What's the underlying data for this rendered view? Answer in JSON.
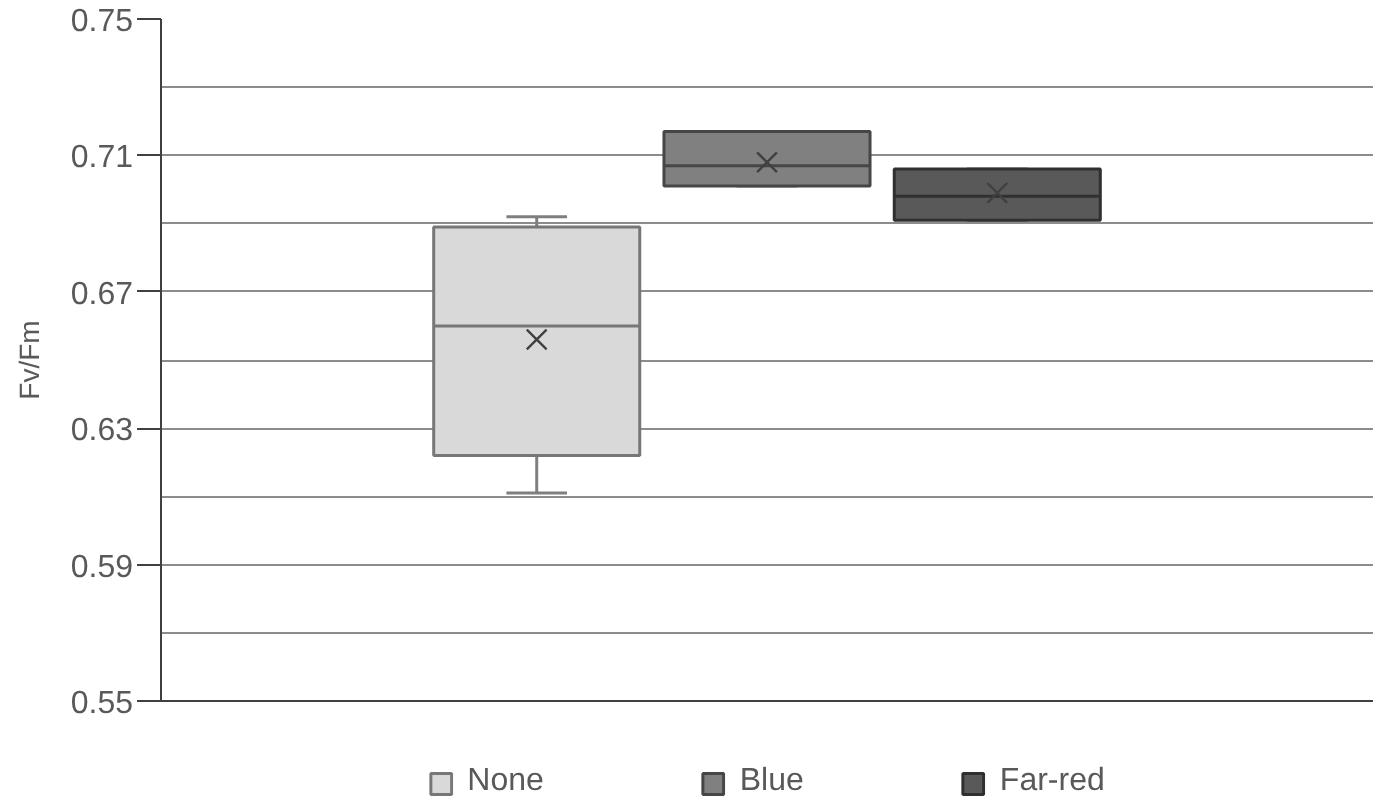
{
  "chart_data": {
    "type": "box",
    "ylabel": "Fv/Fm",
    "categories": [
      null
    ],
    "ylim": [
      0.55,
      0.75
    ],
    "yticks": [
      0.55,
      {
        "value": 0.57,
        "label": null
      },
      0.59,
      {
        "value": 0.61,
        "label": null
      },
      0.63,
      {
        "value": 0.65,
        "label": null
      },
      0.67,
      {
        "value": 0.69,
        "label": null
      },
      0.71,
      {
        "value": 0.73,
        "label": null
      },
      0.75
    ],
    "grid": "y",
    "legend": "bottom",
    "marker": "cross",
    "series": [
      {
        "name": "None",
        "color": "#d9d9d9",
        "boxes": [
          {
            "low": 0.611,
            "q1": 0.622,
            "median": 0.66,
            "q3": 0.689,
            "high": 0.692,
            "mean": 0.656
          }
        ]
      },
      {
        "name": "Blue",
        "color": "#808080",
        "boxes": [
          {
            "low": 0.701,
            "q1": 0.701,
            "median": 0.707,
            "q3": 0.717,
            "high": 0.717,
            "mean": 0.708
          }
        ]
      },
      {
        "name": "Far-red",
        "color": "#595959",
        "boxes": [
          {
            "low": 0.691,
            "q1": 0.691,
            "median": 0.698,
            "q3": 0.706,
            "high": 0.706,
            "mean": 0.699
          }
        ]
      }
    ]
  }
}
